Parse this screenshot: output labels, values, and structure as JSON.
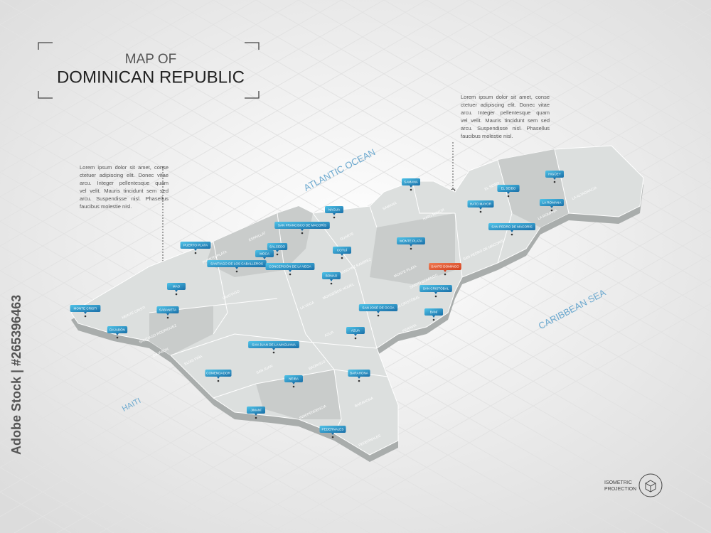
{
  "header": {
    "title_small": "MAP OF",
    "title": "DOMINICAN REPUBLIC"
  },
  "notes": [
    [
      "Lorem ipsum dolor sit amet, conse",
      "ctetuer adipiscing elit. Donec vitae",
      "arcu. Integer pellentesque quam",
      "vel velit. Mauris tincidunt sem sed",
      "arcu. Suspendisse nisl. Phasellus",
      "faucibus molestie nisl."
    ],
    [
      "Lorem ipsum dolor sit amet, conse",
      "ctetuer adipiscing elit. Donec vitae",
      "arcu. Integer pellentesque quam",
      "vel velit. Mauris tincidunt sem sed",
      "arcu. Suspendisse nisl. Phasellus",
      "faucibus molestie nisl."
    ]
  ],
  "water": [
    "ATLANTIC OCEAN",
    "CARIBBEAN SEA",
    "HAITI"
  ],
  "cities": [
    "SAMANÁ",
    "NAGUA",
    "PUERTO PLATA",
    "SAN FRANCISCO DE MACORÍS",
    "SALCEDO",
    "MOCA",
    "SANTIAGO DE LOS CABALLEROS",
    "CONCEPCIÓN DE LA VEGA",
    "COTUÍ",
    "BONAO",
    "MONTE PLATA",
    "SANTO DOMINGO",
    "SAN CRISTÓBAL",
    "BANÍ",
    "SAN JOSÉ DE OCOA",
    "AZUA",
    "MAO",
    "MONTE CRISTI",
    "DAJABÓN",
    "SABANETA",
    "EL SEIBO",
    "HATO MAYOR",
    "LA ROMANA",
    "SAN PEDRO DE MACORÍS",
    "HIGÜEY",
    "SAN JUAN DE LA MAGUANA",
    "COMENDADOR",
    "NEIBA",
    "BARAHONA",
    "JIMANÍ",
    "PEDERNALES"
  ],
  "provinces": [
    "SAMANÁ",
    "DUARTE",
    "ESPAILLAT",
    "PUERTO PLATA",
    "SANTIAGO",
    "MONTE CRISTI",
    "SANTIAGO RODRÍGUEZ",
    "DAJABÓN",
    "ELÍAS PIÑA",
    "LA VEGA",
    "SÁNCHEZ RAMÍREZ",
    "MONSEÑOR NOUEL",
    "MONTE PLATA",
    "HATO MAYOR",
    "EL SEIBO",
    "LA ALTAGRACIA",
    "LA ROMANA",
    "SAN PEDRO DE MACORÍS",
    "SANTO DOMINGO",
    "SAN CRISTÓBAL",
    "PERAVIA",
    "AZUA",
    "SAN JUAN",
    "BAORUCO",
    "INDEPENDENCIA",
    "BARAHONA",
    "PEDERNALES"
  ],
  "footer": {
    "projection": [
      "ISOMETRIC",
      "PROJECTION"
    ],
    "watermark": "Adobe Stock | #265396463"
  }
}
